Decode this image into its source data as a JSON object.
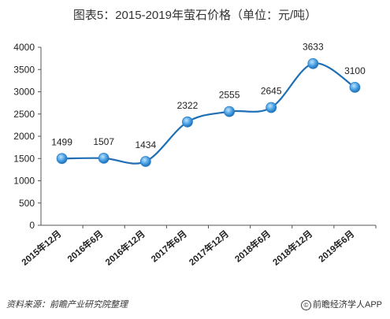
{
  "chart_data": {
    "type": "line",
    "title": "图表5：2015-2019年萤石价格（单位：元/吨）",
    "categories": [
      "2015年12月",
      "2016年6月",
      "2016年12月",
      "2017年6月",
      "2017年12月",
      "2018年6月",
      "2018年12月",
      "2019年6月"
    ],
    "series": [
      {
        "values": [
          1499,
          1507,
          1434,
          2322,
          2555,
          2645,
          3633,
          3100
        ]
      }
    ],
    "ylim": [
      0,
      4000
    ],
    "yticks": [
      0,
      500,
      1000,
      1500,
      2000,
      2500,
      3000,
      3500,
      4000
    ],
    "grid": false,
    "smooth": true,
    "colors": {
      "line": "#1f6fb5",
      "marker": "#4ba3e6",
      "axis": "#555555"
    }
  },
  "footer": {
    "source": "资料来源：前瞻产业研究院整理",
    "credit": "前瞻经济学人APP",
    "copyright_symbol": "©"
  }
}
